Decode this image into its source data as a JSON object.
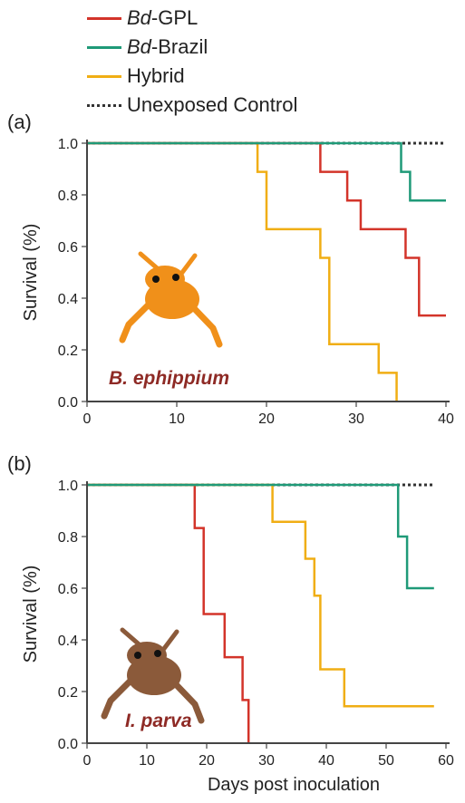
{
  "legend": [
    {
      "prefix": "Bd",
      "suffix": "-GPL",
      "color": "#d3342a",
      "style": "solid"
    },
    {
      "prefix": "Bd",
      "suffix": "-Brazil",
      "color": "#1f9a78",
      "style": "solid"
    },
    {
      "prefix": "",
      "suffix": "Hybrid",
      "color": "#f0ae14",
      "style": "solid"
    },
    {
      "prefix": "",
      "suffix": "Unexposed Control",
      "color": "#333333",
      "style": "dotted"
    }
  ],
  "colors": {
    "gpl": "#d3342a",
    "brazil": "#1f9a78",
    "hybrid": "#f0ae14",
    "control": "#333333",
    "species": "#8e2a25",
    "frog_a": "#f0901a",
    "frog_b": "#8b5a3a"
  },
  "chart_data": [
    {
      "panel": "(a)",
      "type": "line",
      "step": true,
      "species_label": "B. ephippium",
      "ylabel": "Survival (%)",
      "xlabel": "",
      "xlim": [
        0,
        40
      ],
      "ylim": [
        0,
        1
      ],
      "xticks": [
        0,
        10,
        20,
        30,
        40
      ],
      "yticks": [
        "0.0",
        "0.2",
        "0.4",
        "0.6",
        "0.8",
        "1.0"
      ],
      "series": [
        {
          "key": "control",
          "x": [
            0,
            40
          ],
          "y": [
            1.0,
            1.0
          ]
        },
        {
          "key": "hybrid",
          "x": [
            0,
            19,
            20,
            26,
            27,
            32.5,
            34.5
          ],
          "y": [
            1.0,
            0.889,
            0.667,
            0.556,
            0.222,
            0.111,
            0.0
          ]
        },
        {
          "key": "gpl",
          "x": [
            0,
            26,
            29,
            30.5,
            35.5,
            37,
            40
          ],
          "y": [
            1.0,
            0.889,
            0.778,
            0.667,
            0.556,
            0.333,
            0.333
          ]
        },
        {
          "key": "brazil",
          "x": [
            0,
            35,
            36,
            40
          ],
          "y": [
            1.0,
            0.889,
            0.778,
            0.778
          ]
        }
      ]
    },
    {
      "panel": "(b)",
      "type": "line",
      "step": true,
      "species_label": "I. parva",
      "ylabel": "Survival (%)",
      "xlabel": "Days post inoculation",
      "xlim": [
        0,
        60
      ],
      "ylim": [
        0,
        1
      ],
      "xticks": [
        0,
        10,
        20,
        30,
        40,
        50,
        60
      ],
      "yticks": [
        "0.0",
        "0.2",
        "0.4",
        "0.6",
        "0.8",
        "1.0"
      ],
      "series": [
        {
          "key": "control",
          "x": [
            0,
            58
          ],
          "y": [
            1.0,
            1.0
          ]
        },
        {
          "key": "gpl",
          "x": [
            0,
            18,
            19.5,
            21,
            23,
            26,
            27
          ],
          "y": [
            1.0,
            0.833,
            0.5,
            0.5,
            0.333,
            0.167,
            0.0
          ]
        },
        {
          "key": "hybrid",
          "x": [
            0,
            31,
            36.5,
            37.5,
            38,
            39,
            43,
            58
          ],
          "y": [
            1.0,
            0.857,
            0.714,
            0.714,
            0.571,
            0.286,
            0.143,
            0.143
          ]
        },
        {
          "key": "brazil",
          "x": [
            0,
            52,
            53.5,
            58
          ],
          "y": [
            1.0,
            0.8,
            0.6,
            0.6
          ]
        }
      ]
    }
  ]
}
